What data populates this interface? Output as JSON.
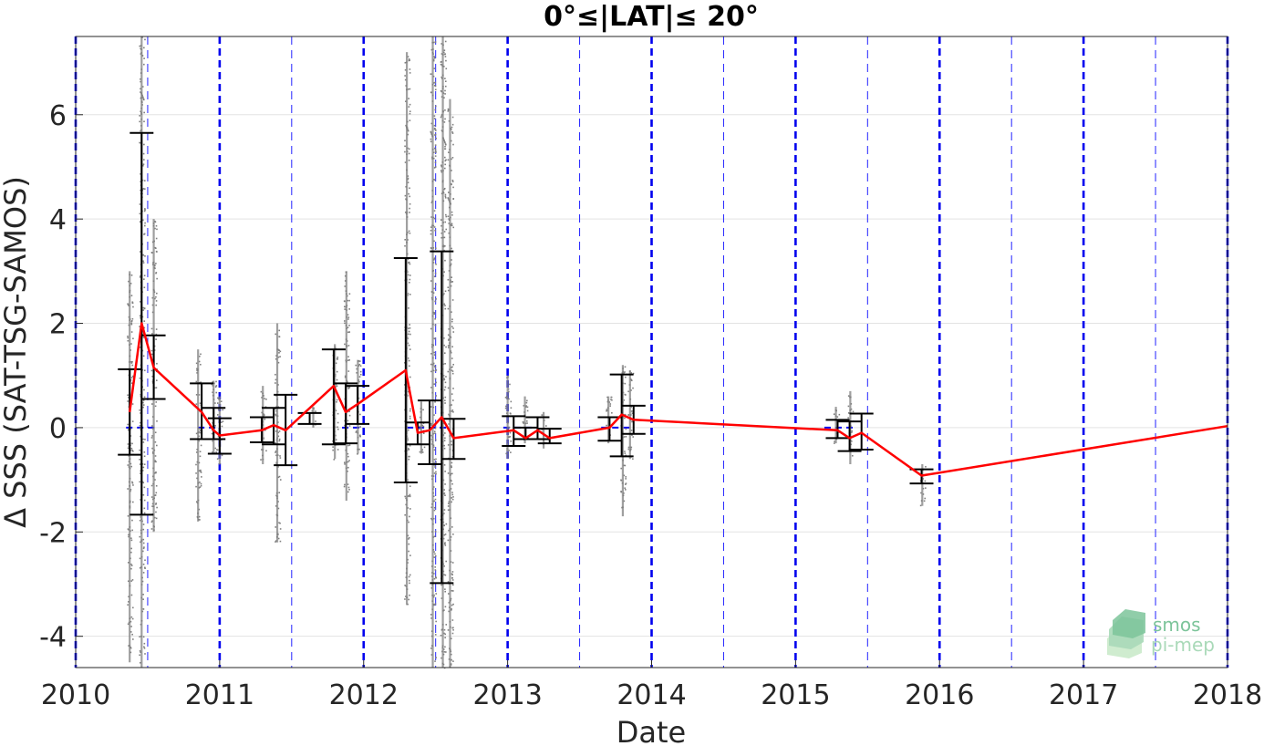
{
  "chart_data": {
    "type": "scatter",
    "title": "0°≤|LAT|≤ 20°",
    "xlabel": "Date",
    "ylabel": "Δ SSS (SAT-TSG-SAMOS)",
    "xlim": [
      2010,
      2018
    ],
    "ylim": [
      -4.6,
      7.5
    ],
    "xticks": [
      "2010",
      "2011",
      "2012",
      "2013",
      "2014",
      "2015",
      "2016",
      "2017",
      "2018"
    ],
    "yticks": [
      "-4",
      "-2",
      "0",
      "2",
      "4",
      "6"
    ],
    "ytick_values": [
      -4,
      -2,
      0,
      2,
      4,
      6
    ],
    "grid": true,
    "vertical_lines": {
      "year_boundaries": [
        2010,
        2011,
        2012,
        2013,
        2014,
        2015,
        2016,
        2017,
        2018
      ],
      "half_year": [
        2010.5,
        2011.5,
        2012.5,
        2013.5,
        2014.5,
        2015.5,
        2016.5,
        2017.5
      ]
    },
    "zero_reference_segments": [
      [
        2010.35,
        2010.55
      ],
      [
        2010.85,
        2011.0
      ],
      [
        2011.85,
        2012.0
      ],
      [
        2012.3,
        2012.6
      ],
      [
        2012.97,
        2013.2
      ],
      [
        2013.65,
        2013.85
      ],
      [
        2015.2,
        2015.4
      ]
    ],
    "series": [
      {
        "name": "",
        "kind": "monthly-mean",
        "color": "#ff0000",
        "points": [
          {
            "x": 2010.375,
            "y": 0.3
          },
          {
            "x": 2010.458,
            "y": 2.0
          },
          {
            "x": 2010.542,
            "y": 1.15
          },
          {
            "x": 2010.875,
            "y": 0.3
          },
          {
            "x": 2010.958,
            "y": -0.05
          },
          {
            "x": 2011.0,
            "y": -0.15
          },
          {
            "x": 2011.292,
            "y": -0.05
          },
          {
            "x": 2011.375,
            "y": 0.05
          },
          {
            "x": 2011.458,
            "y": -0.05
          },
          {
            "x": 2011.792,
            "y": 0.8
          },
          {
            "x": 2011.875,
            "y": 0.3
          },
          {
            "x": 2011.958,
            "y": 0.45
          },
          {
            "x": 2012.292,
            "y": 1.1
          },
          {
            "x": 2012.375,
            "y": -0.1
          },
          {
            "x": 2012.458,
            "y": -0.05
          },
          {
            "x": 2012.542,
            "y": 0.2
          },
          {
            "x": 2012.625,
            "y": -0.2
          },
          {
            "x": 2013.042,
            "y": -0.05
          },
          {
            "x": 2013.125,
            "y": -0.2
          },
          {
            "x": 2013.208,
            "y": -0.05
          },
          {
            "x": 2013.292,
            "y": -0.2
          },
          {
            "x": 2013.708,
            "y": 0.0
          },
          {
            "x": 2013.792,
            "y": 0.25
          },
          {
            "x": 2013.875,
            "y": 0.15
          },
          {
            "x": 2015.292,
            "y": -0.05
          },
          {
            "x": 2015.375,
            "y": -0.2
          },
          {
            "x": 2015.458,
            "y": -0.1
          },
          {
            "x": 2015.875,
            "y": -0.92
          },
          {
            "x": 2018.0,
            "y": 0.03
          }
        ]
      },
      {
        "name": "",
        "kind": "std-error-bars",
        "color": "#000000",
        "bars": [
          {
            "x": 2010.375,
            "low": -0.52,
            "high": 1.12
          },
          {
            "x": 2010.458,
            "low": -1.67,
            "high": 5.65
          },
          {
            "x": 2010.542,
            "low": 0.55,
            "high": 1.77
          },
          {
            "x": 2010.875,
            "low": -0.22,
            "high": 0.85
          },
          {
            "x": 2010.958,
            "low": -0.22,
            "high": 0.38
          },
          {
            "x": 2011.0,
            "low": -0.5,
            "high": 0.18
          },
          {
            "x": 2011.292,
            "low": -0.28,
            "high": 0.2
          },
          {
            "x": 2011.375,
            "low": -0.32,
            "high": 0.38
          },
          {
            "x": 2011.458,
            "low": -0.72,
            "high": 0.63
          },
          {
            "x": 2011.625,
            "low": 0.07,
            "high": 0.28
          },
          {
            "x": 2011.792,
            "low": -0.32,
            "high": 1.5
          },
          {
            "x": 2011.875,
            "low": -0.3,
            "high": 0.85
          },
          {
            "x": 2011.958,
            "low": 0.07,
            "high": 0.8
          },
          {
            "x": 2012.292,
            "low": -1.05,
            "high": 3.25
          },
          {
            "x": 2012.375,
            "low": -0.32,
            "high": 0.1
          },
          {
            "x": 2012.458,
            "low": -0.7,
            "high": 0.52
          },
          {
            "x": 2012.542,
            "low": -2.98,
            "high": 3.38
          },
          {
            "x": 2012.625,
            "low": -0.6,
            "high": 0.17
          },
          {
            "x": 2013.042,
            "low": -0.35,
            "high": 0.22
          },
          {
            "x": 2013.125,
            "low": -0.22,
            "high": 0.0
          },
          {
            "x": 2013.208,
            "low": -0.22,
            "high": 0.2
          },
          {
            "x": 2013.292,
            "low": -0.3,
            "high": -0.02
          },
          {
            "x": 2013.708,
            "low": -0.25,
            "high": 0.2
          },
          {
            "x": 2013.792,
            "low": -0.55,
            "high": 1.02
          },
          {
            "x": 2013.875,
            "low": -0.12,
            "high": 0.42
          },
          {
            "x": 2015.292,
            "low": -0.2,
            "high": 0.15
          },
          {
            "x": 2015.375,
            "low": -0.45,
            "high": 0.12
          },
          {
            "x": 2015.458,
            "low": -0.42,
            "high": 0.27
          },
          {
            "x": 2015.875,
            "low": -1.07,
            "high": -0.8
          }
        ]
      },
      {
        "name": "",
        "kind": "individual-differences-range",
        "color": "#808080",
        "clusters": [
          {
            "x": 2010.375,
            "low": -4.5,
            "high": 3.0
          },
          {
            "x": 2010.458,
            "low": -4.6,
            "high": 7.5
          },
          {
            "x": 2010.542,
            "low": -2.0,
            "high": 4.0
          },
          {
            "x": 2010.85,
            "low": -1.8,
            "high": 1.5
          },
          {
            "x": 2010.958,
            "low": -0.5,
            "high": 0.9
          },
          {
            "x": 2011.0,
            "low": -0.7,
            "high": 0.6
          },
          {
            "x": 2011.3,
            "low": -0.7,
            "high": 0.8
          },
          {
            "x": 2011.4,
            "low": -2.2,
            "high": 2.0
          },
          {
            "x": 2011.65,
            "low": 0.0,
            "high": 0.4
          },
          {
            "x": 2011.8,
            "low": -0.6,
            "high": 1.6
          },
          {
            "x": 2011.88,
            "low": -1.4,
            "high": 3.0
          },
          {
            "x": 2011.96,
            "low": -0.5,
            "high": 1.3
          },
          {
            "x": 2012.3,
            "low": -3.4,
            "high": 7.2
          },
          {
            "x": 2012.4,
            "low": -0.5,
            "high": 0.5
          },
          {
            "x": 2012.48,
            "low": -4.6,
            "high": 7.5
          },
          {
            "x": 2012.55,
            "low": -4.6,
            "high": 7.5
          },
          {
            "x": 2012.6,
            "low": -4.6,
            "high": 6.3
          },
          {
            "x": 2013.0,
            "low": -0.6,
            "high": 1.0
          },
          {
            "x": 2013.12,
            "low": -0.3,
            "high": 0.6
          },
          {
            "x": 2013.25,
            "low": -0.4,
            "high": 0.3
          },
          {
            "x": 2013.7,
            "low": -0.3,
            "high": 0.6
          },
          {
            "x": 2013.8,
            "low": -1.7,
            "high": 1.2
          },
          {
            "x": 2013.85,
            "low": -0.6,
            "high": 1.1
          },
          {
            "x": 2015.28,
            "low": -0.3,
            "high": 0.4
          },
          {
            "x": 2015.38,
            "low": -0.7,
            "high": 0.7
          },
          {
            "x": 2015.88,
            "low": -1.5,
            "high": -0.7
          }
        ]
      }
    ]
  },
  "logo": {
    "line1": "smos",
    "line2": "pi-mep",
    "colors": [
      "#7cc49a",
      "#a9d9b8",
      "#cfeccf"
    ]
  }
}
